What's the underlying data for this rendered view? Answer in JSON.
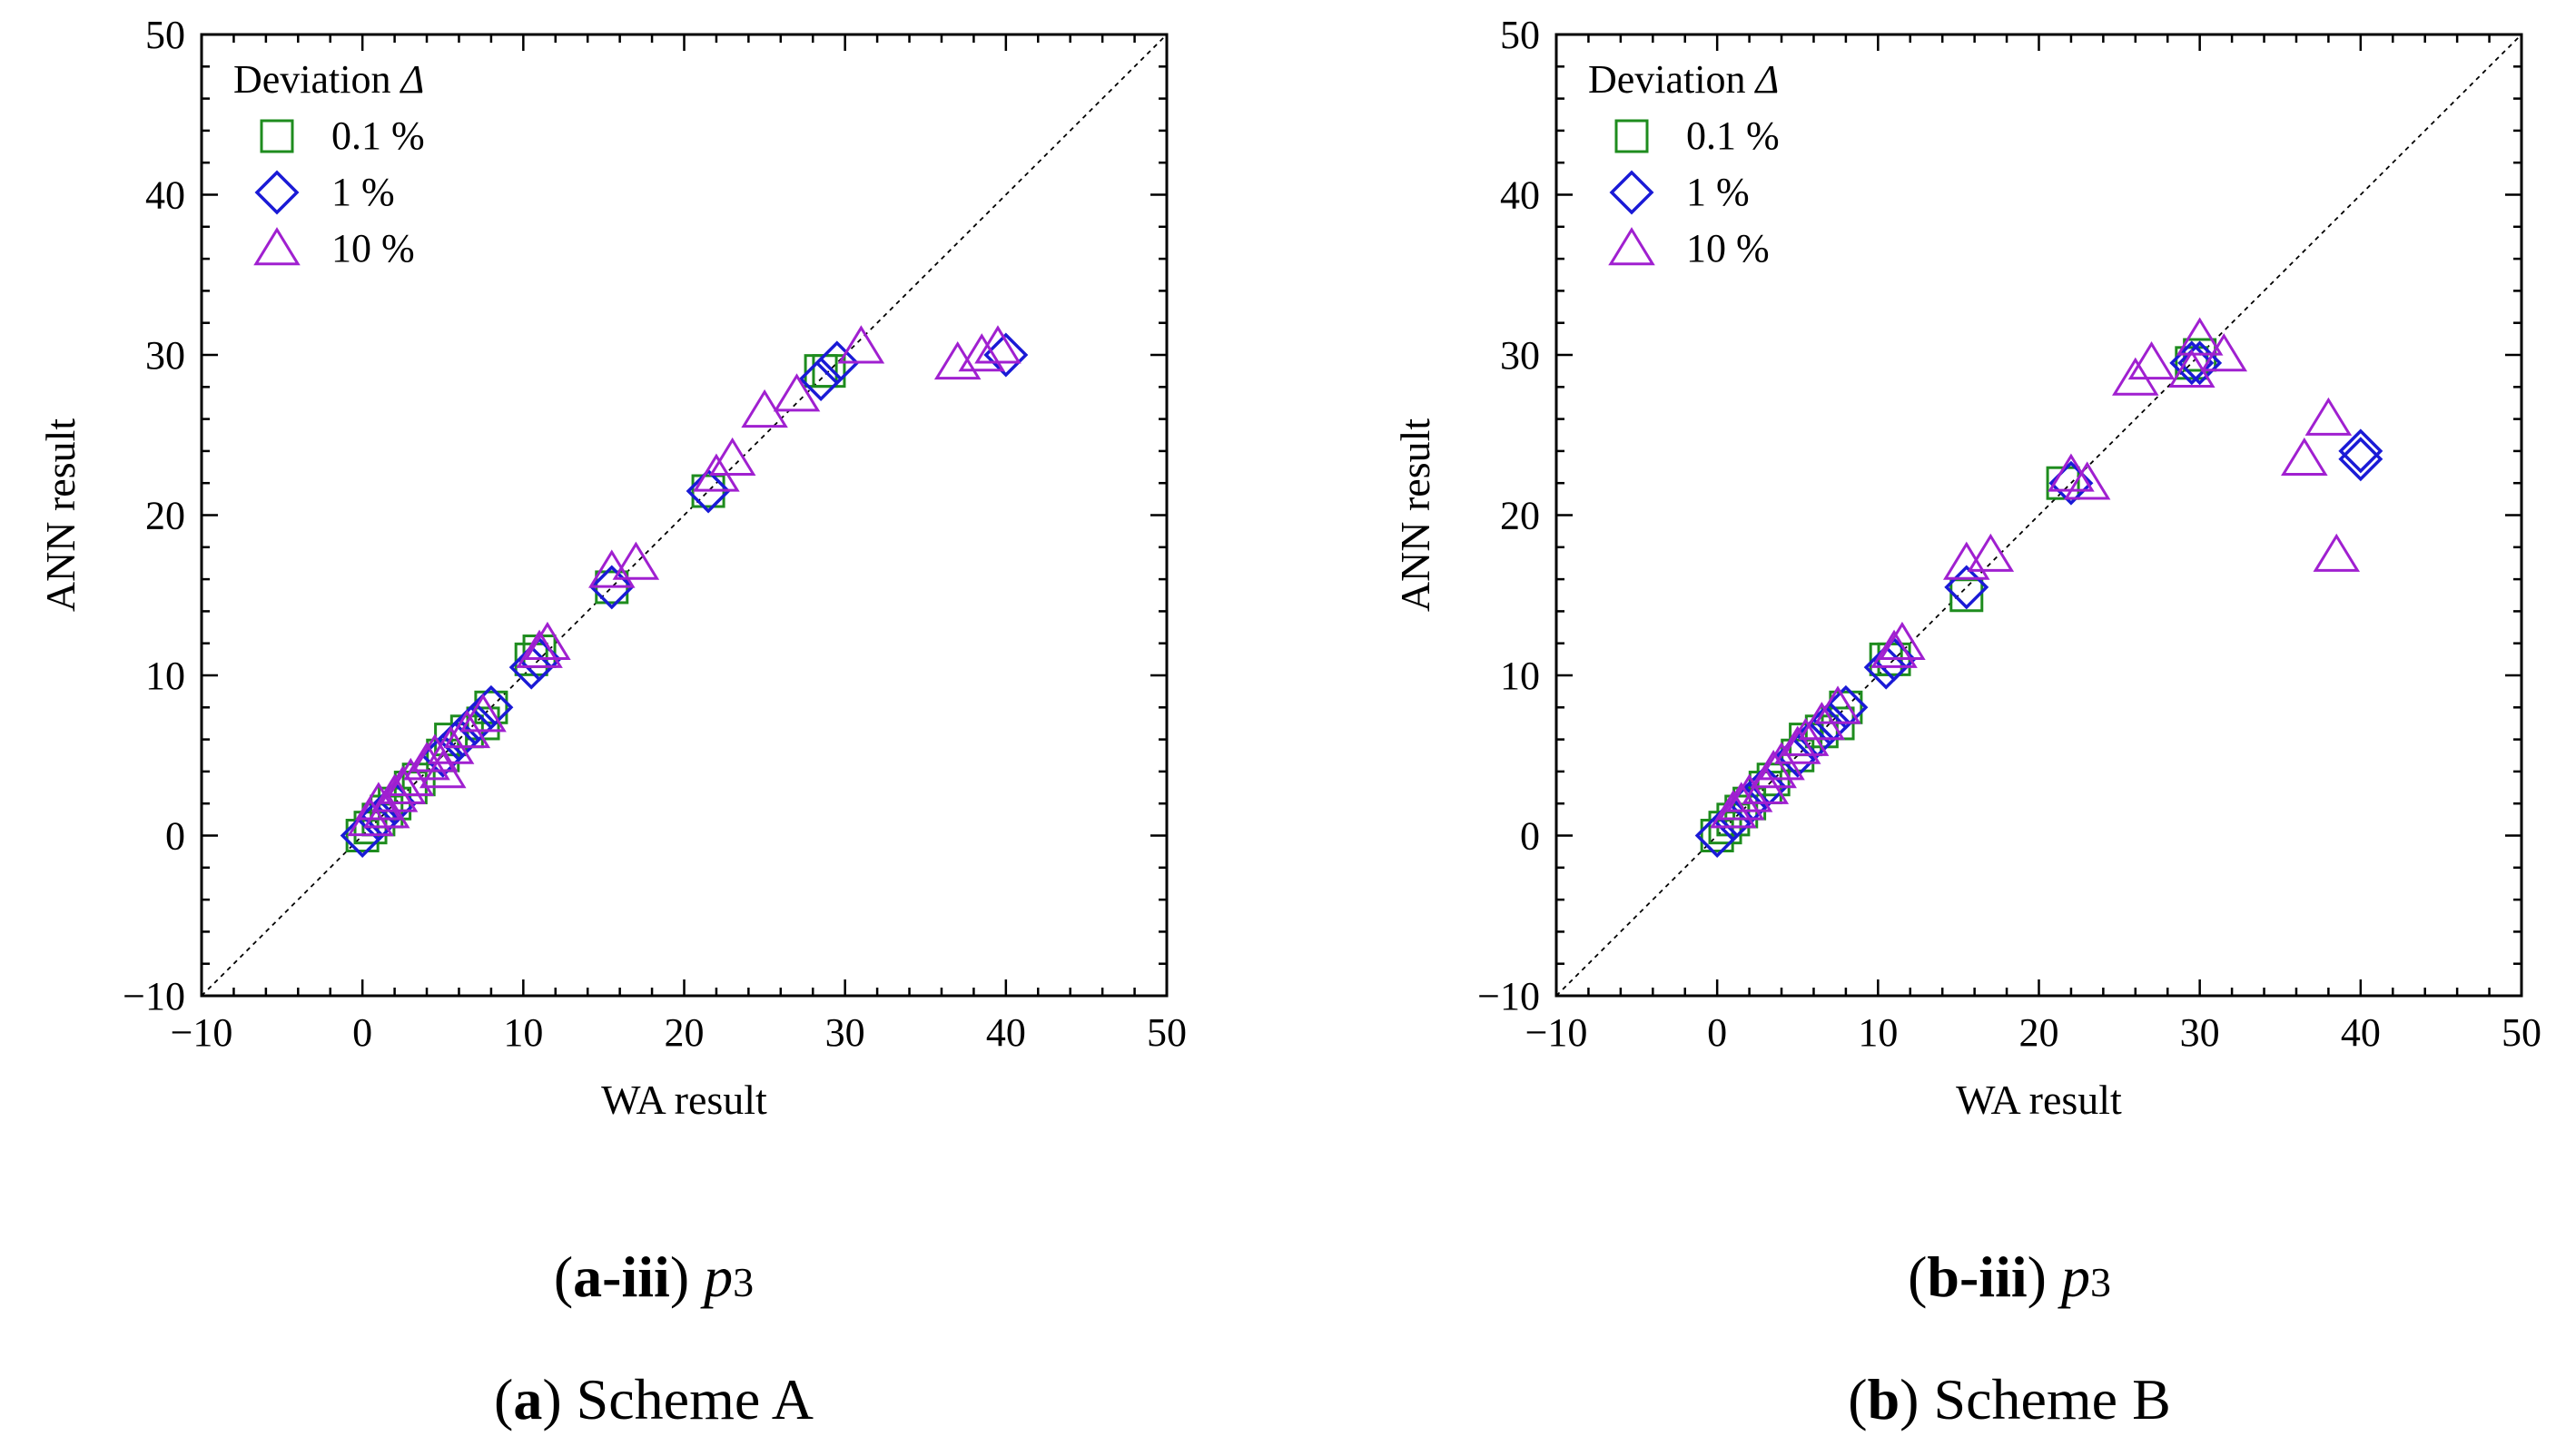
{
  "chart_data": [
    {
      "type": "scatter",
      "panel_label_bold": "a-iii",
      "panel_label_var": "p",
      "panel_label_sub": "3",
      "xlabel": "WA result",
      "ylabel": "ANN result",
      "xlim": [
        -10,
        50
      ],
      "ylim": [
        -10,
        50
      ],
      "xticks": [
        -10,
        0,
        10,
        20,
        30,
        40,
        50
      ],
      "yticks": [
        -10,
        0,
        10,
        20,
        30,
        40,
        50
      ],
      "xtick_labels": [
        "−10",
        "0",
        "10",
        "20",
        "30",
        "40",
        "50"
      ],
      "ytick_labels": [
        "−10",
        "0",
        "10",
        "20",
        "30",
        "40",
        "50"
      ],
      "reference_line": "y = x",
      "legend": {
        "title_text": "Deviation ",
        "title_symbol": "Δ",
        "entries": [
          "0.1 %",
          "1 %",
          "10 %"
        ],
        "placement": "top-left"
      },
      "series": [
        {
          "name": "0.1 %",
          "marker": "square",
          "color": "#1e8c1e",
          "x": [
            0,
            0.5,
            1,
            1.5,
            2,
            3,
            3.5,
            5,
            5.5,
            6.5,
            7.5,
            8,
            10.5,
            11,
            15.5,
            21.5,
            28.5,
            29
          ],
          "y": [
            0,
            0.5,
            1,
            1.5,
            2,
            3,
            3.5,
            5,
            6,
            6.5,
            7,
            8,
            11,
            11.5,
            15.5,
            21.5,
            29,
            29
          ]
        },
        {
          "name": "1 %",
          "marker": "diamond",
          "color": "#1a1ad6",
          "x": [
            0,
            1,
            2,
            5,
            6,
            7,
            8,
            10.5,
            11,
            15.5,
            21.5,
            28.5,
            29.5,
            40
          ],
          "y": [
            0,
            1,
            2,
            5,
            6,
            7,
            8,
            10.5,
            11,
            15.5,
            21.5,
            28.5,
            29.5,
            30
          ]
        },
        {
          "name": "10 %",
          "marker": "triangle",
          "color": "#a020d0",
          "x": [
            0.5,
            1,
            1.5,
            2,
            2.5,
            3,
            4,
            4.5,
            5,
            5.5,
            6.5,
            7.5,
            11,
            11.5,
            15.5,
            17,
            22,
            23,
            25,
            27,
            31,
            37,
            38.5,
            39.5
          ],
          "y": [
            1,
            2,
            1.5,
            2.5,
            3,
            3.5,
            4.5,
            5,
            4,
            5.5,
            6.5,
            7.5,
            11.5,
            12,
            16.5,
            17,
            22.5,
            23.5,
            26.5,
            27.5,
            30.5,
            29.5,
            30,
            30.5
          ]
        }
      ]
    },
    {
      "type": "scatter",
      "panel_label_bold": "b-iii",
      "panel_label_var": "p",
      "panel_label_sub": "3",
      "xlabel": "WA result",
      "ylabel": "ANN result",
      "xlim": [
        -10,
        50
      ],
      "ylim": [
        -10,
        50
      ],
      "xticks": [
        -10,
        0,
        10,
        20,
        30,
        40,
        50
      ],
      "yticks": [
        -10,
        0,
        10,
        20,
        30,
        40,
        50
      ],
      "xtick_labels": [
        "−10",
        "0",
        "10",
        "20",
        "30",
        "40",
        "50"
      ],
      "ytick_labels": [
        "−10",
        "0",
        "10",
        "20",
        "30",
        "40",
        "50"
      ],
      "reference_line": "y = x",
      "legend": {
        "title_text": "Deviation ",
        "title_symbol": "Δ",
        "entries": [
          "0.1 %",
          "1 %",
          "10 %"
        ],
        "placement": "top-left"
      },
      "series": [
        {
          "name": "0.1 %",
          "marker": "square",
          "color": "#1e8c1e",
          "x": [
            0,
            0.5,
            1,
            1.5,
            2,
            3,
            3.5,
            5,
            5.5,
            6.5,
            7.5,
            8,
            10.5,
            11,
            15.5,
            21.5,
            29.5,
            30
          ],
          "y": [
            0,
            0.5,
            1,
            1.5,
            2,
            3,
            3.5,
            5,
            6,
            6.5,
            7,
            8,
            11,
            11,
            15,
            22,
            29.5,
            30
          ]
        },
        {
          "name": "1 %",
          "marker": "diamond",
          "color": "#1a1ad6",
          "x": [
            0,
            1,
            2,
            3,
            5,
            6,
            7,
            8,
            10.5,
            11,
            15.5,
            22,
            29.5,
            30,
            40,
            40
          ],
          "y": [
            0,
            1,
            2,
            3,
            5,
            6,
            7,
            8,
            10.5,
            11,
            15.5,
            22,
            29.5,
            29.5,
            24,
            23.5
          ]
        },
        {
          "name": "10 %",
          "marker": "triangle",
          "color": "#a020d0",
          "x": [
            1,
            1.5,
            2,
            3,
            3.5,
            4,
            5,
            5.5,
            6.5,
            7.5,
            11,
            11.5,
            15.5,
            17,
            22,
            23,
            26,
            27,
            29.5,
            30,
            31.5,
            36.5,
            38,
            38.5
          ],
          "y": [
            1.5,
            2,
            2.5,
            3,
            4,
            4.5,
            5.5,
            6,
            7,
            8,
            11.5,
            12,
            17,
            17.5,
            22.5,
            22,
            28.5,
            29.5,
            29,
            31,
            30,
            23.5,
            26,
            17.5
          ]
        }
      ]
    }
  ],
  "captions": {
    "overall_a_label": "a",
    "overall_a_text": " Scheme A",
    "overall_b_label": "b",
    "overall_b_text": " Scheme B"
  }
}
